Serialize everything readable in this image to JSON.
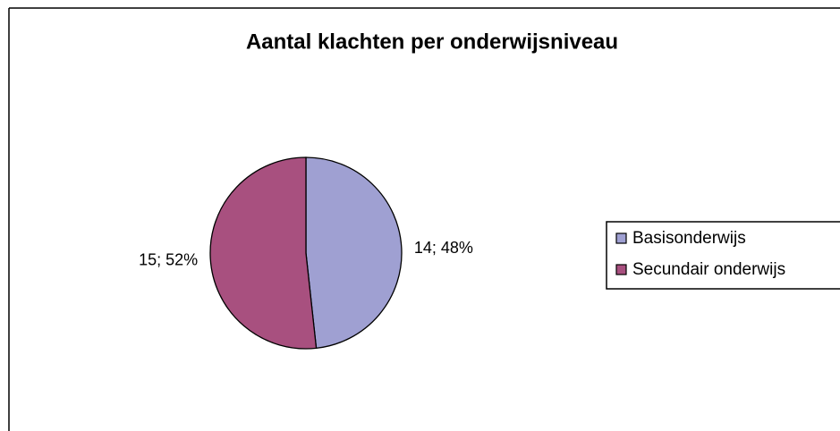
{
  "chart_data": {
    "type": "pie",
    "title": "Aantal klachten per onderwijsniveau",
    "categories": [
      "Basisonderwijs",
      "Secundair onderwijs"
    ],
    "values": [
      14,
      15
    ],
    "value_labels": [
      "14; 48%",
      "15; 52%"
    ],
    "colors": [
      "#9fa0d2",
      "#a8507f"
    ],
    "legend": "right"
  }
}
